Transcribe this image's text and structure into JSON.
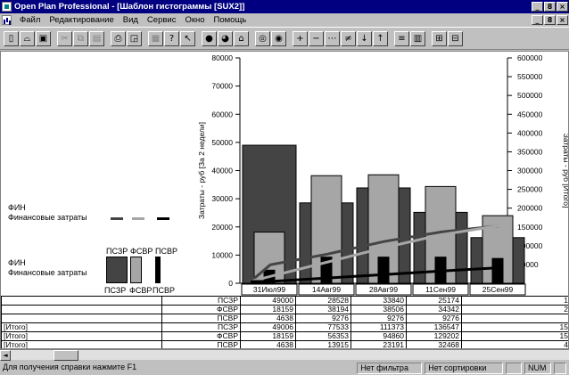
{
  "window": {
    "title": "Open Plan Professional - [Шаблон гистограммы [SUX2]]",
    "controls": [
      "_",
      "8",
      "×"
    ]
  },
  "menu": {
    "items": [
      "Файл",
      "Редактирование",
      "Вид",
      "Сервис",
      "Окно",
      "Помощь"
    ],
    "doc_controls": [
      "_",
      "8",
      "×"
    ]
  },
  "toolbar": {
    "buttons": [
      {
        "icon": "new-document-icon",
        "glyph": "▯"
      },
      {
        "icon": "open-folder-icon",
        "glyph": "⌓"
      },
      {
        "icon": "save-icon",
        "glyph": "▣"
      },
      {
        "icon": "cut-icon",
        "glyph": "✂"
      },
      {
        "icon": "copy-icon",
        "glyph": "⧉"
      },
      {
        "icon": "paste-icon",
        "glyph": "▤"
      },
      {
        "icon": "print-icon",
        "glyph": "⎙"
      },
      {
        "icon": "print-preview-icon",
        "glyph": "◲"
      },
      {
        "icon": "properties-icon",
        "glyph": "▦"
      },
      {
        "icon": "help-icon",
        "glyph": "?"
      },
      {
        "icon": "context-help-icon",
        "glyph": "↖"
      },
      {
        "icon": "globe-icon",
        "glyph": "●"
      },
      {
        "icon": "chart-pie-icon",
        "glyph": "◕"
      },
      {
        "icon": "bank-icon",
        "glyph": "⌂"
      },
      {
        "icon": "target-icon",
        "glyph": "◎"
      },
      {
        "icon": "filter-icon",
        "glyph": "◉"
      },
      {
        "icon": "add-icon",
        "glyph": "+"
      },
      {
        "icon": "remove-icon",
        "glyph": "−"
      },
      {
        "icon": "link-icon",
        "glyph": "⋯"
      },
      {
        "icon": "unlink-icon",
        "glyph": "≠"
      },
      {
        "icon": "move-down-icon",
        "glyph": "↓"
      },
      {
        "icon": "move-up-icon",
        "glyph": "↑"
      },
      {
        "icon": "list-icon",
        "glyph": "≡"
      },
      {
        "icon": "table-icon",
        "glyph": "▥"
      },
      {
        "icon": "zoom-in-icon",
        "glyph": "⊞"
      },
      {
        "icon": "zoom-out-icon",
        "glyph": "⊟"
      }
    ]
  },
  "legend": {
    "line_title": "ФИН",
    "line_label": "Финансовые затраты",
    "line_items": [
      "ПСЗР",
      "ФСВР",
      "ПСВР"
    ],
    "bar_title": "ФИН",
    "bar_label": "Финансовые затраты",
    "bar_items": [
      "ПСЗР",
      "ФСВР",
      "ПСВР"
    ]
  },
  "colors": {
    "pszr": "#444444",
    "fsvr": "#a6a6a6",
    "psvr": "#000000",
    "grid": "#000000"
  },
  "chart_data": {
    "type": "bar",
    "categories": [
      "31Июл99",
      "14Авг99",
      "28Авг99",
      "11Сен99",
      "25Сен99"
    ],
    "ylabel": "Затраты - руб [За 2 недели]",
    "y2label": "Затраты - руб [Итого]",
    "ylim": [
      0,
      80000
    ],
    "y2lim": [
      0,
      600000
    ],
    "yticks": [
      "0",
      "10000",
      "20000",
      "30000",
      "40000",
      "50000",
      "60000",
      "70000",
      "80000"
    ],
    "y2ticks": [
      "0",
      "50000",
      "100000",
      "150000",
      "200000",
      "250000",
      "300000",
      "350000",
      "400000",
      "450000",
      "500000",
      "550000",
      "600000"
    ],
    "series": [
      {
        "name": "ПСЗР",
        "values": [
          49000,
          28528,
          33840,
          25174,
          16200
        ]
      },
      {
        "name": "ФСВР",
        "values": [
          18159,
          38194,
          38506,
          34342,
          24000
        ]
      },
      {
        "name": "ПСВР",
        "values": [
          4638,
          9276,
          9276,
          9276,
          8800
        ]
      }
    ],
    "cumulative_series": [
      {
        "name": "ПСЗР",
        "values": [
          49006,
          77533,
          111373,
          136547,
          152747
        ]
      },
      {
        "name": "ФСВР",
        "values": [
          18159,
          56353,
          94860,
          129202,
          153202
        ]
      },
      {
        "name": "ПСВР",
        "values": [
          4638,
          13915,
          23191,
          32468,
          41268
        ]
      }
    ]
  },
  "table": {
    "rows": [
      {
        "label": "",
        "metric": "ПСЗР",
        "values": [
          "49000",
          "28528",
          "33840",
          "25174",
          "1"
        ]
      },
      {
        "label": "",
        "metric": "ФСВР",
        "values": [
          "18159",
          "38194",
          "38506",
          "34342",
          "2"
        ]
      },
      {
        "label": "",
        "metric": "ПСВР",
        "values": [
          "4638",
          "9276",
          "9276",
          "9276",
          ""
        ]
      },
      {
        "label": "[Итого]",
        "metric": "ПСЗР",
        "values": [
          "49006",
          "77533",
          "111373",
          "136547",
          "15"
        ]
      },
      {
        "label": "[Итого]",
        "metric": "ФСВР",
        "values": [
          "18159",
          "56353",
          "94860",
          "129202",
          "15"
        ]
      },
      {
        "label": "[Итого]",
        "metric": "ПСВР",
        "values": [
          "4638",
          "13915",
          "23191",
          "32468",
          "4"
        ]
      }
    ]
  },
  "scrollbar": {
    "left_glyph": "◄"
  },
  "status": {
    "help": "Для получения справки нажмите F1",
    "filter": "Нет фильтра",
    "sort": "Нет сортировки",
    "num": "NUM"
  }
}
